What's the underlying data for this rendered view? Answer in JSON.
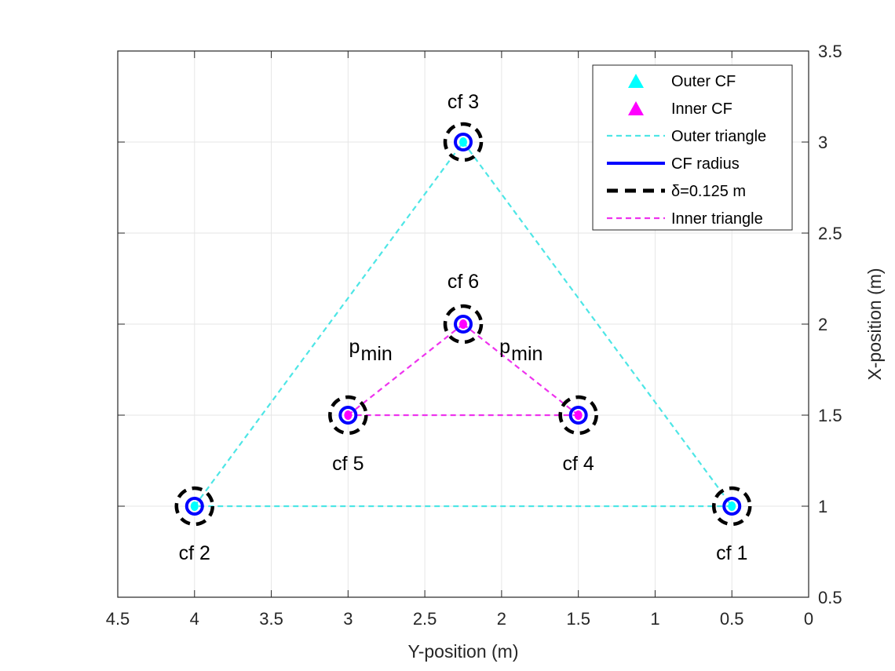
{
  "chart_data": {
    "type": "scatter",
    "xlabel": "Y-position (m)",
    "ylabel": "X-position (m)",
    "x_axis_reversed": true,
    "y_axis_location": "right",
    "xlim": [
      0,
      4.5
    ],
    "ylim": [
      0.5,
      3.5
    ],
    "xticks": [
      "4.5",
      "4",
      "3.5",
      "3",
      "2.5",
      "2",
      "1.5",
      "1",
      "0.5",
      "0"
    ],
    "yticks": [
      "0.5",
      "1",
      "1.5",
      "2",
      "2.5",
      "3",
      "3.5"
    ],
    "grid": true,
    "legend_position": "top-right",
    "colors": {
      "outer": "#00ffff",
      "inner": "#ff00ff",
      "outer_line": "#4ee6e6",
      "inner_line": "#ee33ee",
      "radius": "#0000ff",
      "delta": "#000000"
    },
    "points": [
      {
        "label": "cf 1",
        "x": 0.5,
        "y": 1.0,
        "group": "outer"
      },
      {
        "label": "cf 2",
        "x": 4.0,
        "y": 1.0,
        "group": "outer"
      },
      {
        "label": "cf 3",
        "x": 2.25,
        "y": 3.0,
        "group": "outer"
      },
      {
        "label": "cf 4",
        "x": 1.5,
        "y": 1.5,
        "group": "inner"
      },
      {
        "label": "cf 5",
        "x": 3.0,
        "y": 1.5,
        "group": "inner"
      },
      {
        "label": "cf 6",
        "x": 2.25,
        "y": 2.0,
        "group": "inner"
      }
    ],
    "series": [
      {
        "name": "Outer CF",
        "style": "marker-triangle",
        "color": "#00ffff"
      },
      {
        "name": "Inner CF",
        "style": "marker-triangle",
        "color": "#ff00ff"
      },
      {
        "name": "Outer triangle",
        "style": "dashed",
        "color": "#4ee6e6"
      },
      {
        "name": "CF radius",
        "style": "solid",
        "color": "#0000ff"
      },
      {
        "name": "δ=0.125 m",
        "style": "dashed-thick",
        "color": "#000000"
      },
      {
        "name": "Inner triangle",
        "style": "dashed",
        "color": "#ee33ee"
      }
    ],
    "annotations": [
      {
        "text": "p",
        "subscript": "min",
        "x": 2.82,
        "y": 1.84
      },
      {
        "text": "p",
        "subscript": "min",
        "x": 1.84,
        "y": 1.84
      }
    ]
  }
}
